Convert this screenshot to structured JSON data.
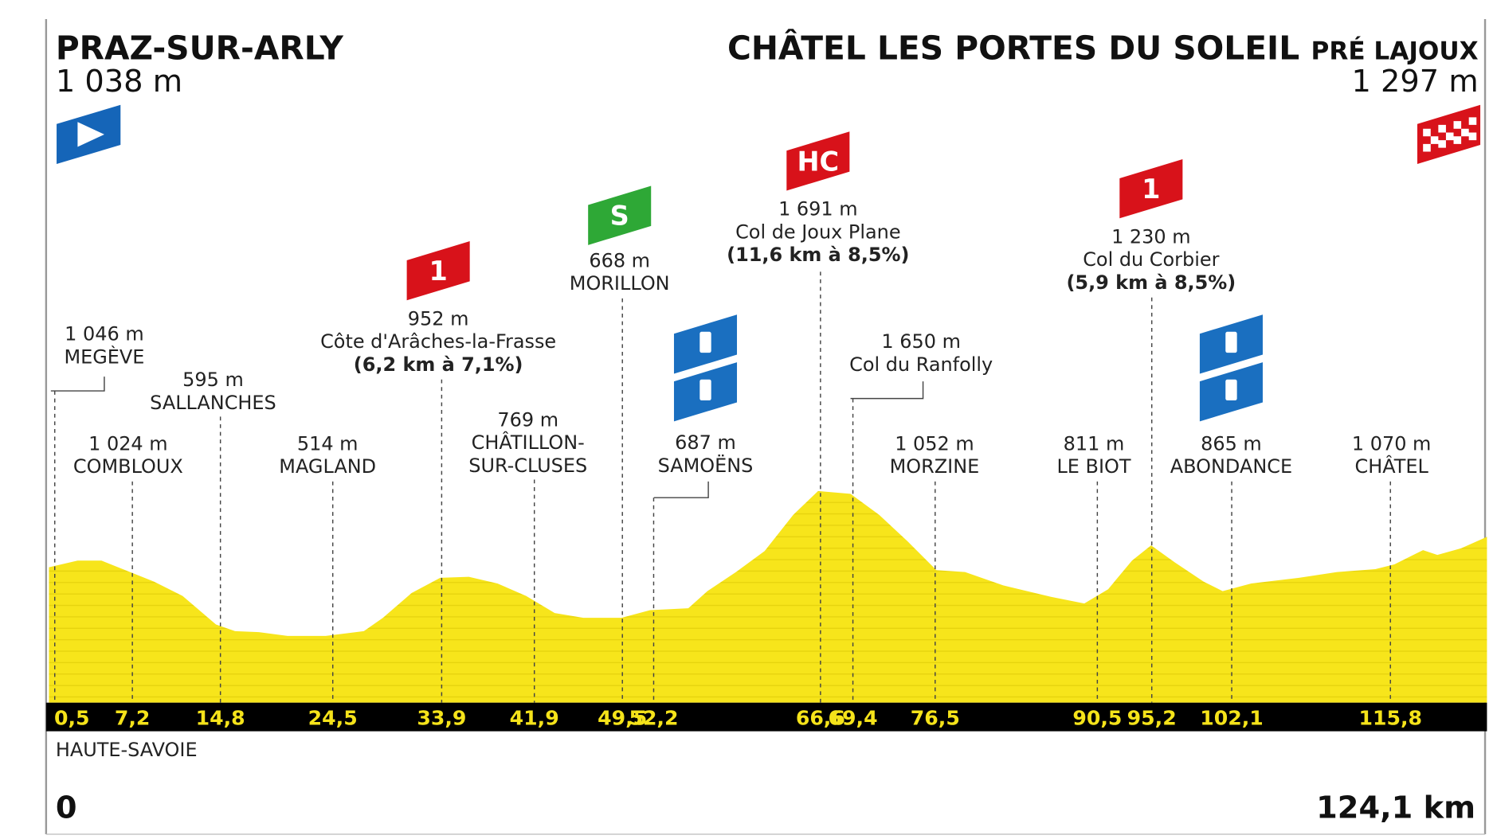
{
  "header": {
    "start_name": "PRAZ-SUR-ARLY",
    "start_altitude": "1 038 m",
    "finish_name": "CHÂTEL LES PORTES DU SOLEIL",
    "finish_sub": "PRÉ LAJOUX",
    "finish_altitude": "1 297 m"
  },
  "waypoints": [
    {
      "km": "0,5",
      "lines": [
        "1 046 m",
        "MEGÈVE"
      ]
    },
    {
      "km": "7,2",
      "lines": [
        "1 024 m",
        "COMBLOUX"
      ]
    },
    {
      "km": "14,8",
      "lines": [
        "595 m",
        "SALLANCHES"
      ]
    },
    {
      "km": "24,5",
      "lines": [
        "514 m",
        "MAGLAND"
      ]
    },
    {
      "km": "33,9",
      "flag": "1",
      "lines": [
        "952 m",
        "Côte d'Arâches-la-Frasse",
        "(6,2 km à 7,1%)"
      ]
    },
    {
      "km": "41,9",
      "lines": [
        "769 m",
        "CHÂTILLON-",
        "SUR-CLUSES"
      ]
    },
    {
      "km": "49,5",
      "flag": "S",
      "lines": [
        "668 m",
        "MORILLON"
      ]
    },
    {
      "km": "52,2",
      "lines": [
        "687 m",
        "SAMOËNS"
      ]
    },
    {
      "km": "66,6",
      "flag": "HC",
      "lines": [
        "1 691 m",
        "Col de Joux Plane",
        "(11,6 km à 8,5%)"
      ]
    },
    {
      "km": "69,4",
      "lines": [
        "1 650 m",
        "Col du Ranfolly"
      ]
    },
    {
      "km": "76,5",
      "lines": [
        "1 052 m",
        "MORZINE"
      ]
    },
    {
      "km": "90,5",
      "lines": [
        "811 m",
        "LE BIOT"
      ]
    },
    {
      "km": "95,2",
      "flag": "1",
      "lines": [
        "1 230 m",
        "Col du Corbier",
        "(5,9 km à 8,5%)"
      ]
    },
    {
      "km": "102,1",
      "lines": [
        "865 m",
        "ABONDANCE"
      ]
    },
    {
      "km": "115,8",
      "lines": [
        "1 070 m",
        "CHÂTEL"
      ]
    }
  ],
  "footer": {
    "region": "HAUTE-SAVOIE",
    "start_km": "0",
    "total": "124,1 km"
  }
}
